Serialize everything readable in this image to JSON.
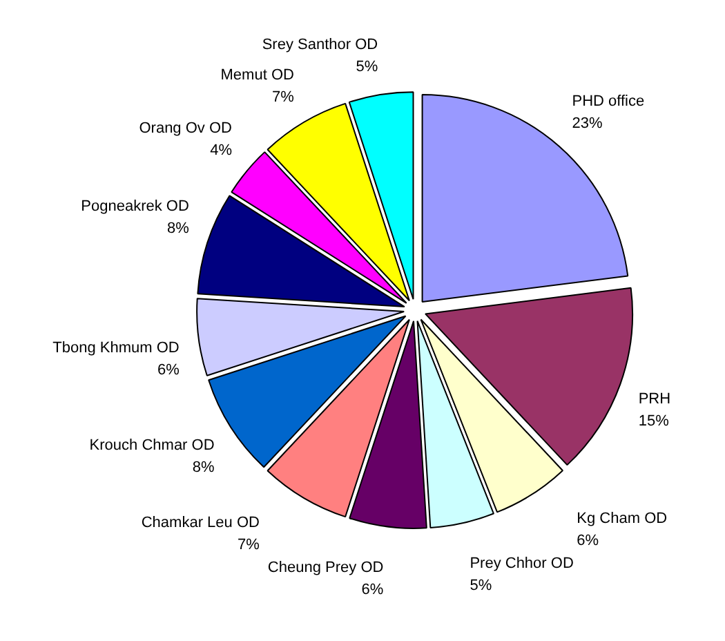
{
  "chart_data": {
    "type": "pie",
    "categories": [
      "PHD office",
      "PRH",
      "Kg Cham OD",
      "Prey Chhor OD",
      "Cheung Prey OD",
      "Chamkar Leu OD",
      "Krouch Chmar OD",
      "Tbong Khmum OD",
      "Pogneakrek OD",
      "Orang Ov OD",
      "Memut OD",
      "Srey Santhor OD"
    ],
    "values": [
      23,
      15,
      6,
      5,
      6,
      7,
      8,
      6,
      8,
      4,
      7,
      5
    ],
    "value_labels": [
      "23%",
      "15%",
      "6%",
      "5%",
      "6%",
      "7%",
      "8%",
      "6%",
      "8%",
      "4%",
      "7%",
      "5%"
    ],
    "colors": [
      "#9999ff",
      "#993366",
      "#ffffcc",
      "#ccffff",
      "#660066",
      "#ff8080",
      "#0066cc",
      "#ccccff",
      "#000080",
      "#ff00ff",
      "#ffff00",
      "#00ffff"
    ]
  }
}
